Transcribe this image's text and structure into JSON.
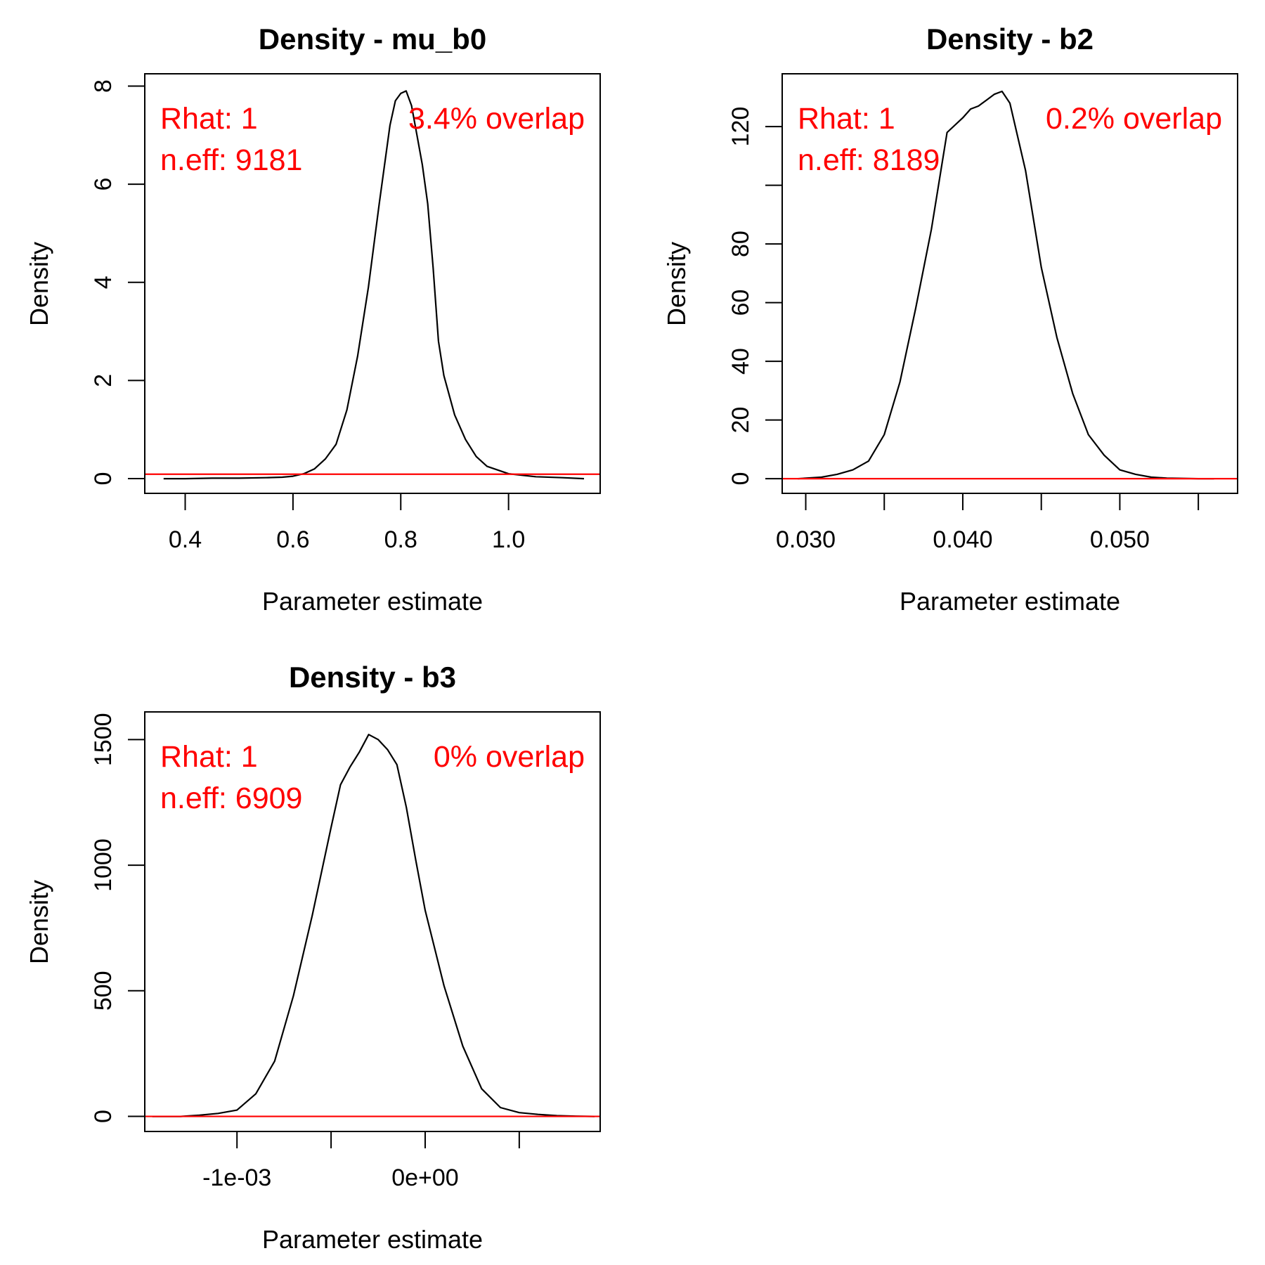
{
  "chart_data": [
    {
      "type": "line",
      "title": "Density - mu_b0",
      "xlabel": "Parameter estimate",
      "ylabel": "Density",
      "xlim": [
        0.325,
        1.17
      ],
      "ylim": [
        -0.3,
        8.25
      ],
      "xticks": [
        0.4,
        0.6,
        0.8,
        1.0
      ],
      "xtick_labels": [
        "0.4",
        "0.6",
        "0.8",
        "1.0"
      ],
      "yticks": [
        0,
        2,
        4,
        6,
        8
      ],
      "ytick_labels": [
        "0",
        "2",
        "4",
        "6",
        "8"
      ],
      "reference_line_y": 0.09,
      "annotations": {
        "rhat": "Rhat: 1",
        "neff": "n.eff: 9181",
        "overlap": "3.4% overlap"
      },
      "colors": {
        "curve": "#000000",
        "reference_line": "#ff0000",
        "annotations": "#ff0000"
      },
      "series": [
        {
          "x": [
            0.36,
            0.4,
            0.45,
            0.5,
            0.55,
            0.58,
            0.6,
            0.62,
            0.64,
            0.66,
            0.68,
            0.7,
            0.72,
            0.74,
            0.76,
            0.78,
            0.79,
            0.8,
            0.81,
            0.82,
            0.83,
            0.84,
            0.85,
            0.86,
            0.87,
            0.88,
            0.9,
            0.92,
            0.94,
            0.96,
            1.0,
            1.05,
            1.1,
            1.14
          ],
          "y": [
            0.0,
            0.0,
            0.01,
            0.01,
            0.02,
            0.03,
            0.05,
            0.1,
            0.2,
            0.4,
            0.7,
            1.4,
            2.5,
            3.9,
            5.6,
            7.2,
            7.7,
            7.85,
            7.9,
            7.6,
            7.0,
            6.4,
            5.6,
            4.3,
            2.8,
            2.1,
            1.3,
            0.8,
            0.45,
            0.25,
            0.1,
            0.04,
            0.02,
            0.0
          ]
        }
      ]
    },
    {
      "type": "line",
      "title": "Density - b2",
      "xlabel": "Parameter estimate",
      "ylabel": "Density",
      "xlim": [
        0.0285,
        0.0575
      ],
      "ylim": [
        -5,
        138
      ],
      "xticks": [
        0.03,
        0.035,
        0.04,
        0.045,
        0.05,
        0.055
      ],
      "xtick_labels": [
        "0.030",
        "",
        "0.040",
        "",
        "0.050",
        ""
      ],
      "yticks": [
        0,
        20,
        40,
        60,
        80,
        100,
        120
      ],
      "ytick_labels": [
        "0",
        "20",
        "40",
        "60",
        "80",
        "",
        "120"
      ],
      "reference_line_y": 0,
      "annotations": {
        "rhat": "Rhat: 1",
        "neff": "n.eff: 8189",
        "overlap": "0.2% overlap"
      },
      "colors": {
        "curve": "#000000",
        "reference_line": "#ff0000",
        "annotations": "#ff0000"
      },
      "series": [
        {
          "x": [
            0.0295,
            0.031,
            0.032,
            0.033,
            0.034,
            0.035,
            0.036,
            0.037,
            0.038,
            0.039,
            0.04,
            0.0405,
            0.041,
            0.0415,
            0.042,
            0.0425,
            0.043,
            0.044,
            0.045,
            0.046,
            0.047,
            0.048,
            0.049,
            0.05,
            0.051,
            0.052,
            0.053,
            0.054,
            0.055,
            0.056
          ],
          "y": [
            0,
            0.5,
            1.5,
            3,
            6,
            15,
            33,
            58,
            85,
            118,
            123,
            126,
            127,
            129,
            131,
            132,
            128,
            105,
            72,
            48,
            29,
            15,
            8,
            3,
            1.5,
            0.5,
            0.2,
            0.1,
            0,
            0
          ]
        }
      ]
    },
    {
      "type": "line",
      "title": "Density - b3",
      "xlabel": "Parameter estimate",
      "ylabel": "Density",
      "xlim": [
        -0.00149,
        0.00093
      ],
      "ylim": [
        -60,
        1610
      ],
      "xticks": [
        -0.001,
        -0.0005,
        0.0,
        0.0005
      ],
      "xtick_labels": [
        "-1e-03",
        "",
        "0e+00",
        ""
      ],
      "yticks": [
        0,
        500,
        1000,
        1500
      ],
      "ytick_labels": [
        "0",
        "500",
        "1000",
        "1500"
      ],
      "reference_line_y": 0,
      "annotations": {
        "rhat": "Rhat: 1",
        "neff": "n.eff: 6909",
        "overlap": "0% overlap"
      },
      "colors": {
        "curve": "#000000",
        "reference_line": "#ff0000",
        "annotations": "#ff0000"
      },
      "series": [
        {
          "x": [
            -0.00145,
            -0.0013,
            -0.0012,
            -0.0011,
            -0.001,
            -0.0009,
            -0.0008,
            -0.0007,
            -0.0006,
            -0.0005,
            -0.00045,
            -0.0004,
            -0.00035,
            -0.0003,
            -0.00025,
            -0.0002,
            -0.00015,
            -0.0001,
            -5e-05,
            0.0,
            0.0001,
            0.0002,
            0.0003,
            0.0004,
            0.0005,
            0.0006,
            0.0007,
            0.0008,
            0.0009
          ],
          "y": [
            0,
            0,
            5,
            12,
            25,
            90,
            220,
            480,
            800,
            1150,
            1320,
            1390,
            1450,
            1520,
            1500,
            1460,
            1400,
            1230,
            1020,
            820,
            520,
            280,
            110,
            35,
            15,
            8,
            3,
            1,
            0
          ]
        }
      ]
    }
  ]
}
